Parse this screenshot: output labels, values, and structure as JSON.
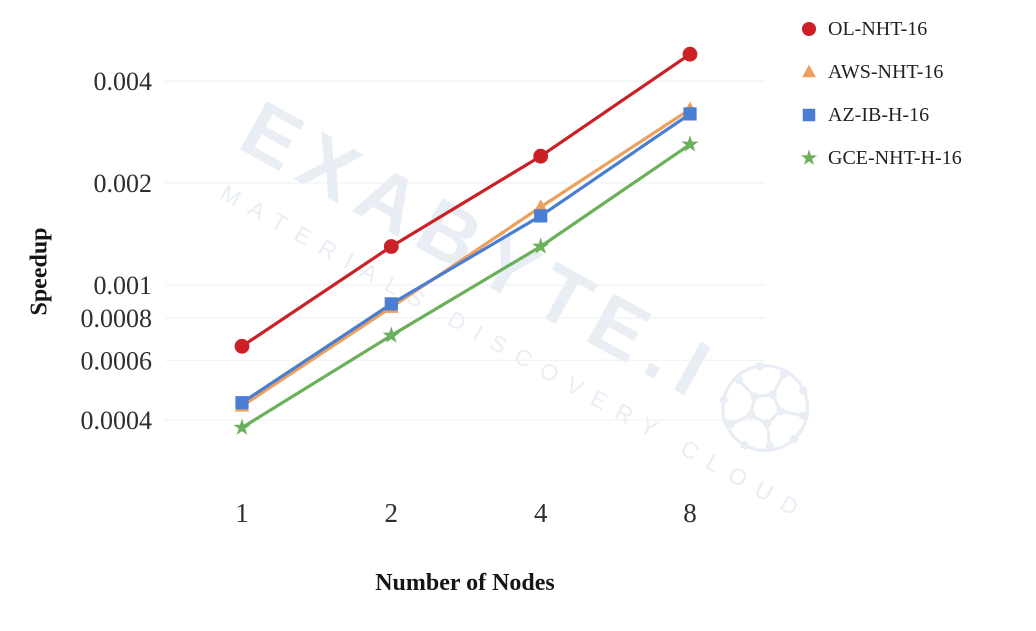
{
  "axes": {
    "y_title": "Speedup",
    "x_title": "Number of Nodes",
    "y_tick_labels": [
      "0.004",
      "0.002",
      "0.001",
      "0.0008",
      "0.0006",
      "0.0004"
    ],
    "x_tick_labels": [
      "1",
      "2",
      "4",
      "8"
    ]
  },
  "legend": {
    "items": [
      {
        "label": "OL-NHT-16",
        "marker": "circle-icon",
        "color": "#cb2026"
      },
      {
        "label": "AWS-NHT-16",
        "marker": "triangle-icon",
        "color": "#eda05e"
      },
      {
        "label": "AZ-IB-H-16",
        "marker": "square-icon",
        "color": "#4a7ed3"
      },
      {
        "label": "GCE-NHT-H-16",
        "marker": "star-icon",
        "color": "#6bb05a"
      }
    ]
  },
  "watermark": {
    "text_main": "EXABYTE.I",
    "text_sub": "MATERIALS DISCOVERY CLOUD",
    "ball_icon": "wireframe-sphere-icon",
    "color": "#e9edf4"
  },
  "colors": {
    "gridline": "#eeeff1",
    "tick_text": "#2e2e2e",
    "axis_title_text": "#161616"
  },
  "chart_data": {
    "type": "line",
    "title": "",
    "xlabel": "Number of Nodes",
    "ylabel": "Speedup",
    "x": [
      1,
      2,
      4,
      8
    ],
    "x_scale": "log2",
    "y_scale": "log10",
    "ylim": [
      0.00034,
      0.0052
    ],
    "y_ticks": [
      0.004,
      0.002,
      0.001,
      0.0008,
      0.0006,
      0.0004
    ],
    "grid": "horizontal",
    "legend_position": "right",
    "series": [
      {
        "name": "OL-NHT-16",
        "marker": "circle",
        "color": "#cb2026",
        "values": [
          0.00066,
          0.0013,
          0.0024,
          0.0048
        ]
      },
      {
        "name": "AWS-NHT-16",
        "marker": "triangle",
        "color": "#eda05e",
        "values": [
          0.00044,
          0.00086,
          0.0017,
          0.0033
        ]
      },
      {
        "name": "AZ-IB-H-16",
        "marker": "square",
        "color": "#4a7ed3",
        "values": [
          0.00045,
          0.00088,
          0.0016,
          0.0032
        ]
      },
      {
        "name": "GCE-NHT-H-16",
        "marker": "star",
        "color": "#6bb05a",
        "values": [
          0.00038,
          0.00071,
          0.0013,
          0.0026
        ]
      }
    ]
  }
}
